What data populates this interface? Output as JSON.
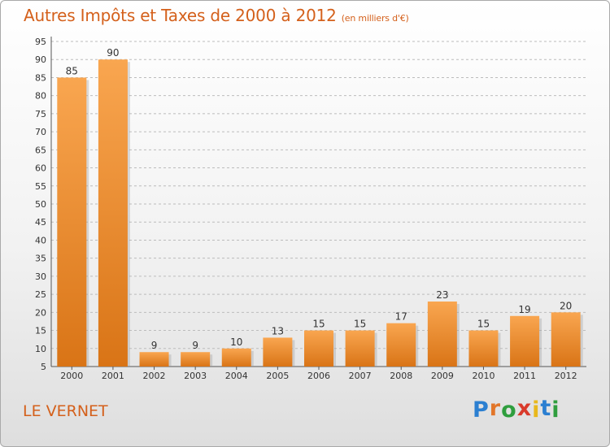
{
  "header": {
    "title": "Autres Impôts et Taxes de 2000 à 2012",
    "unit": "(en milliers d'€)"
  },
  "footer": {
    "commune": "LE VERNET",
    "logo": "Proxiti"
  },
  "colors": {
    "title": "#d4601b",
    "bar_light": "#f9a650",
    "bar_dark": "#d97416",
    "grid": "#bcbcbc",
    "logo_letters": [
      "#2b7fd1",
      "#e2762a",
      "#2f9e3e",
      "#d93a2b",
      "#e8b81c",
      "#2b7fd1",
      "#2f9e3e"
    ]
  },
  "chart_data": {
    "type": "bar",
    "categories": [
      "2000",
      "2001",
      "2002",
      "2003",
      "2004",
      "2005",
      "2006",
      "2007",
      "2008",
      "2009",
      "2010",
      "2011",
      "2012"
    ],
    "values": [
      85,
      90,
      9,
      9,
      10,
      13,
      15,
      15,
      17,
      23,
      15,
      19,
      20
    ],
    "ylim": [
      5,
      95
    ],
    "ytick_step": 5,
    "grid": true,
    "data_labels": true
  }
}
